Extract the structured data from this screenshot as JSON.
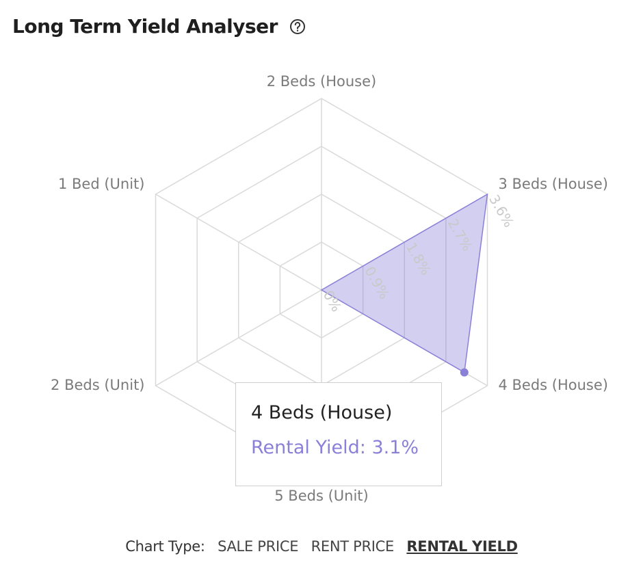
{
  "header": {
    "title": "Long Term Yield Analyser",
    "help_icon": "help-circle-icon"
  },
  "chart_data": {
    "type": "radar",
    "categories": [
      "2 Beds (House)",
      "3 Beds (House)",
      "4 Beds (House)",
      "5 Beds (Unit)",
      "2 Beds (Unit)",
      "1 Bed (Unit)"
    ],
    "series": [
      {
        "name": "Rental Yield",
        "values": [
          0,
          3.6,
          3.1,
          0,
          0,
          0
        ],
        "color": "#8a80d8"
      }
    ],
    "ticks": [
      "0%",
      "0.9%",
      "1.8%",
      "2.7%",
      "3.6%"
    ],
    "rmax": 3.6,
    "grid": true
  },
  "tooltip": {
    "title": "4 Beds (House)",
    "value": "Rental Yield: 3.1%"
  },
  "footer": {
    "label": "Chart Type:",
    "options": [
      "SALE PRICE",
      "RENT PRICE",
      "RENTAL YIELD"
    ],
    "active_index": 2
  }
}
